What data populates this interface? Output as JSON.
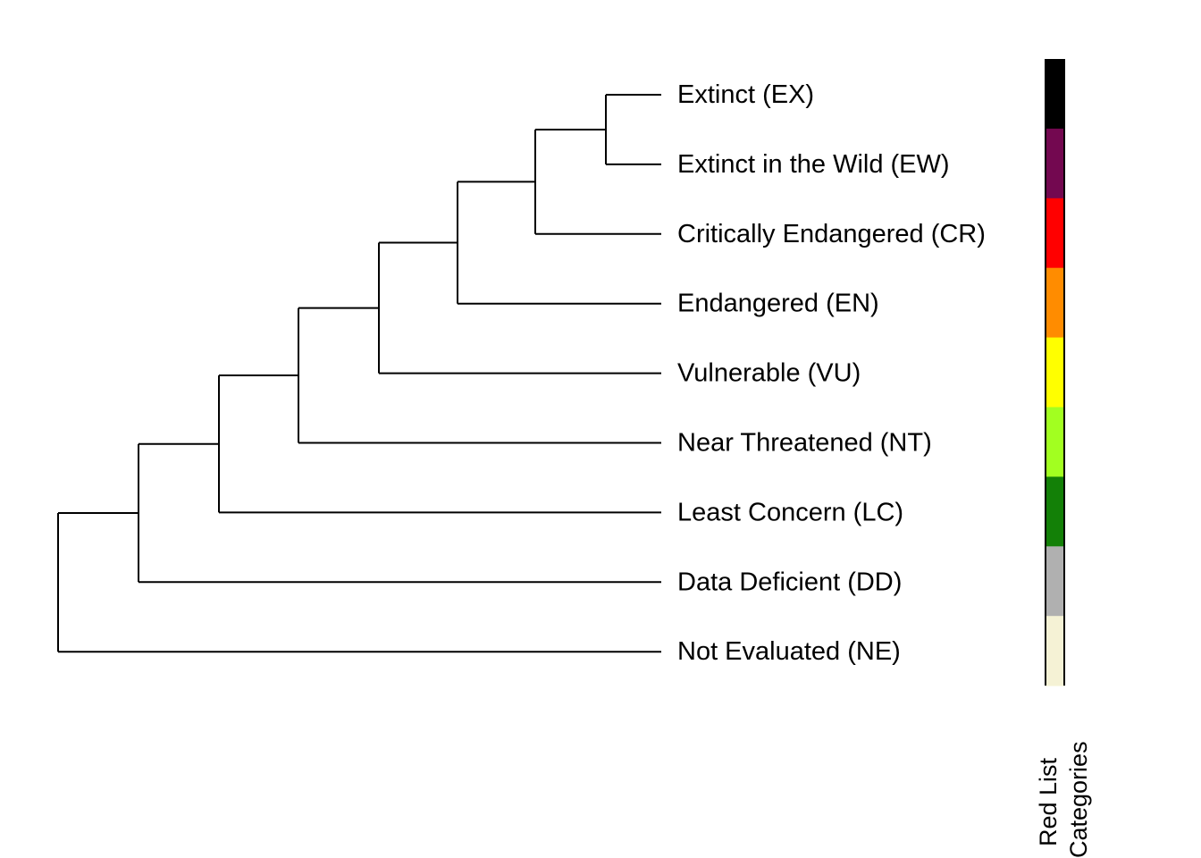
{
  "dendrogram": {
    "leaves": [
      {
        "id": "EX",
        "label": "Extinct (EX)",
        "color": "#000000"
      },
      {
        "id": "EW",
        "label": "Extinct in the Wild (EW)",
        "color": "#730850"
      },
      {
        "id": "CR",
        "label": "Critically Endangered (CR)",
        "color": "#ff0000"
      },
      {
        "id": "EN",
        "label": "Endangered (EN)",
        "color": "#ff8c00"
      },
      {
        "id": "VU",
        "label": "Vulnerable (VU)",
        "color": "#ffff00"
      },
      {
        "id": "NT",
        "label": "Near Threatened (NT)",
        "color": "#a2ff20"
      },
      {
        "id": "LC",
        "label": "Least Concern (LC)",
        "color": "#138007"
      },
      {
        "id": "DD",
        "label": "Data Deficient (DD)",
        "color": "#b0b0b0"
      },
      {
        "id": "NE",
        "label": "Not Evaluated (NE)",
        "color": "#f5f2d5"
      }
    ],
    "merges": [
      {
        "children": [
          "EX",
          "EW"
        ],
        "level": 1
      },
      {
        "children": [
          "EX+EW",
          "CR"
        ],
        "level": 2
      },
      {
        "children": [
          "EX+EW+CR",
          "EN"
        ],
        "level": 3
      },
      {
        "children": [
          "EX+EW+CR+EN",
          "VU"
        ],
        "level": 4
      },
      {
        "children": [
          "EX+EW+CR+EN+VU",
          "NT"
        ],
        "level": 5
      },
      {
        "children": [
          "EX+EW+CR+EN+VU+NT",
          "LC"
        ],
        "level": 6
      },
      {
        "children": [
          "EX+EW+CR+EN+VU+NT+LC",
          "DD"
        ],
        "level": 7
      },
      {
        "children": [
          "EX+EW+CR+EN+VU+NT+LC+DD",
          "NE"
        ],
        "level": 8
      }
    ]
  },
  "color_bar": {
    "title_line1": "Red List",
    "title_line2": "Categories"
  }
}
